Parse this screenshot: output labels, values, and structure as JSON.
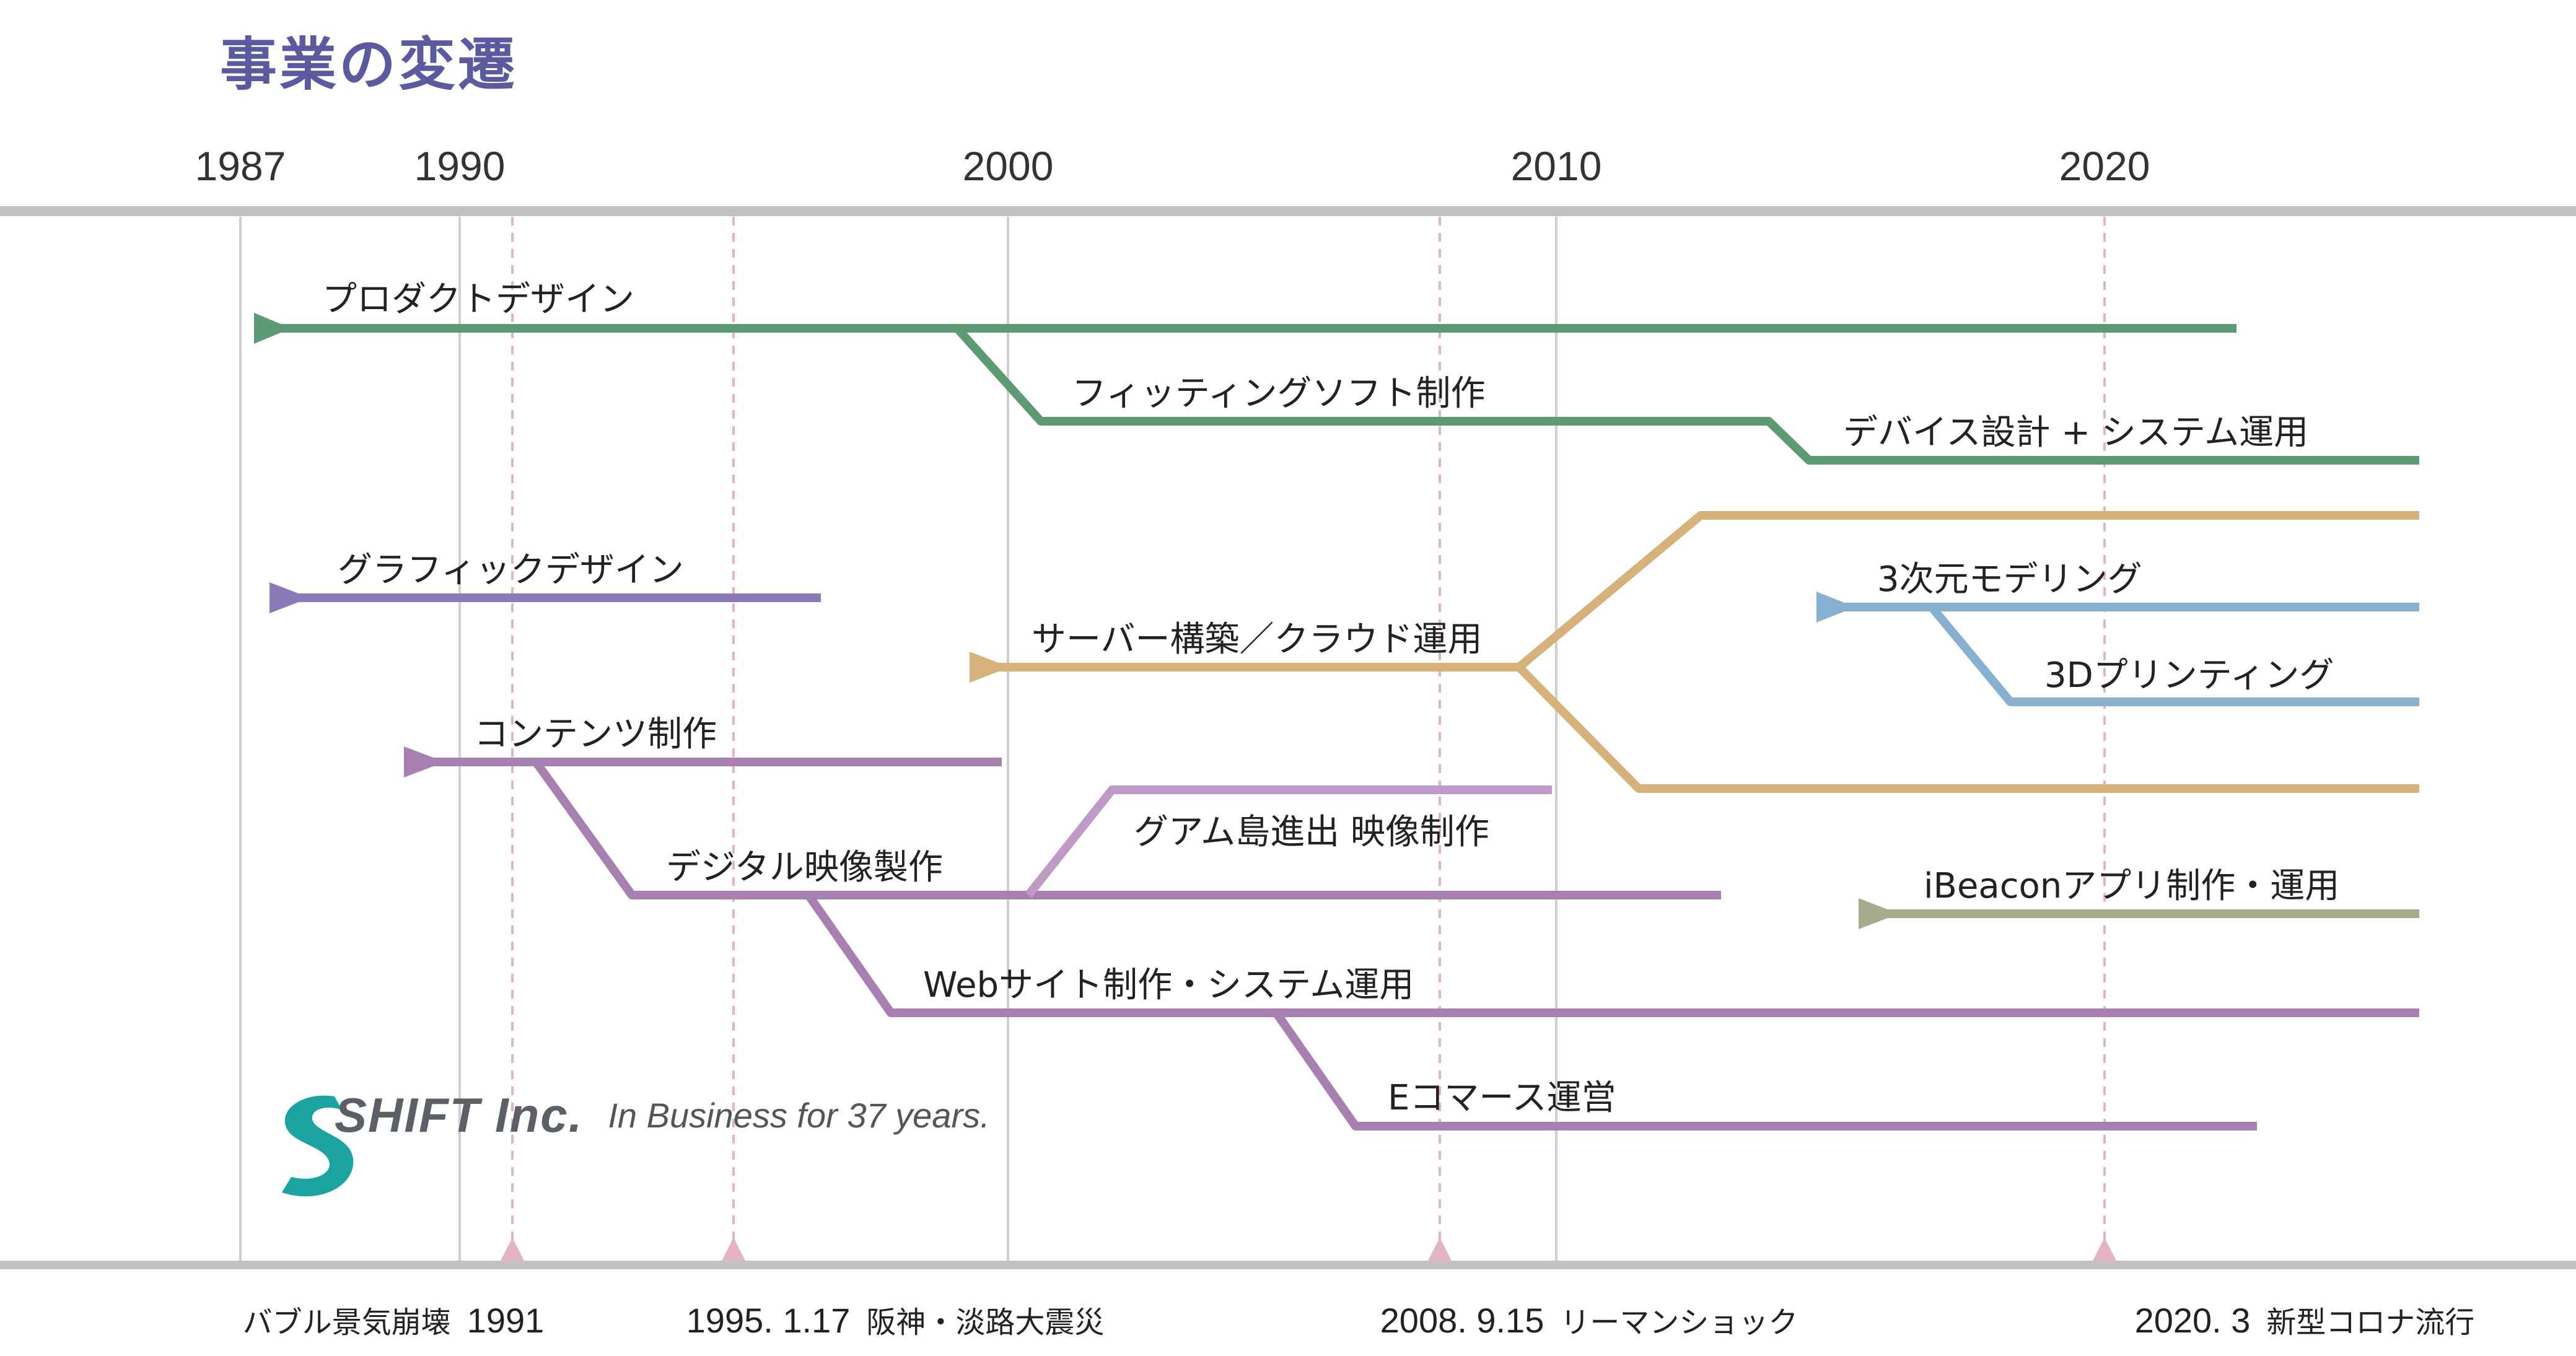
{
  "title": "事業の変遷",
  "axis": {
    "years": [
      "1987",
      "1990",
      "2000",
      "2010",
      "2020"
    ]
  },
  "colors": {
    "axis": "#bfbfbf",
    "product": "#5c9a73",
    "graphic": "#8a7ab8",
    "content": "#a77fb0",
    "video_branch": "#c09ac6",
    "server": "#d6b27a",
    "modeling": "#86afd0",
    "ibeacon": "#a6ab8c",
    "event_marker": "#e6b3c6",
    "title": "#5b5aa0",
    "logo": "#1aa3a0"
  },
  "businesses": {
    "product_design": "プロダクトデザイン",
    "fitting_software": "フィッティングソフト制作",
    "device_design": "デバイス設計 + システム運用",
    "graphic_design": "グラフィックデザイン",
    "server": "サーバー構築／クラウド運用",
    "modeling_3d": "3次元モデリング",
    "printing_3d": "3Dプリンティング",
    "contents": "コンテンツ制作",
    "digital_video": "デジタル映像製作",
    "guam": "グアム島進出 映像制作",
    "ibeacon": "iBeaconアプリ制作・運用",
    "web": "Webサイト制作・システム運用",
    "ecommerce": "Eコマース運営"
  },
  "events": [
    {
      "date": "1991",
      "label": "バブル景気崩壊",
      "year": 1991
    },
    {
      "date": "1995. 1.17",
      "label": "阪神・淡路大震災",
      "year": 1995
    },
    {
      "date": "2008. 9.15",
      "label": "リーマンショック",
      "year": 2008
    },
    {
      "date": "2020. 3",
      "label": "新型コロナ流行",
      "year": 2020
    }
  ],
  "brand": {
    "name": "SHIFT Inc.",
    "tagline": "In Business for 37 years."
  }
}
